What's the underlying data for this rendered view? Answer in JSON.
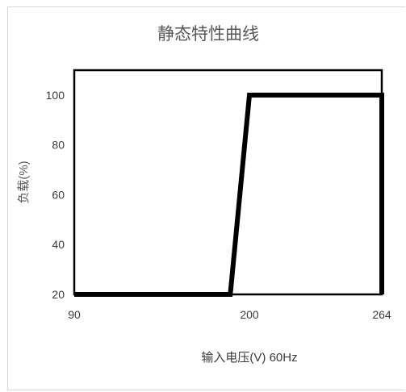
{
  "chart_data": {
    "type": "line",
    "title": "静态特性曲线",
    "xlabel": "输入电压(V)  60Hz",
    "ylabel": "负载(%)",
    "x_ticks": [
      "90",
      "200",
      "264"
    ],
    "y_ticks": [
      "20",
      "40",
      "60",
      "80",
      "100"
    ],
    "xlim": [
      90,
      264
    ],
    "ylim": [
      20,
      110
    ],
    "grid": false,
    "series": [
      {
        "points": [
          [
            90,
            20
          ],
          [
            188,
            20
          ],
          [
            200,
            100
          ],
          [
            264,
            100
          ],
          [
            264,
            20
          ]
        ],
        "color": "#000000"
      }
    ]
  }
}
